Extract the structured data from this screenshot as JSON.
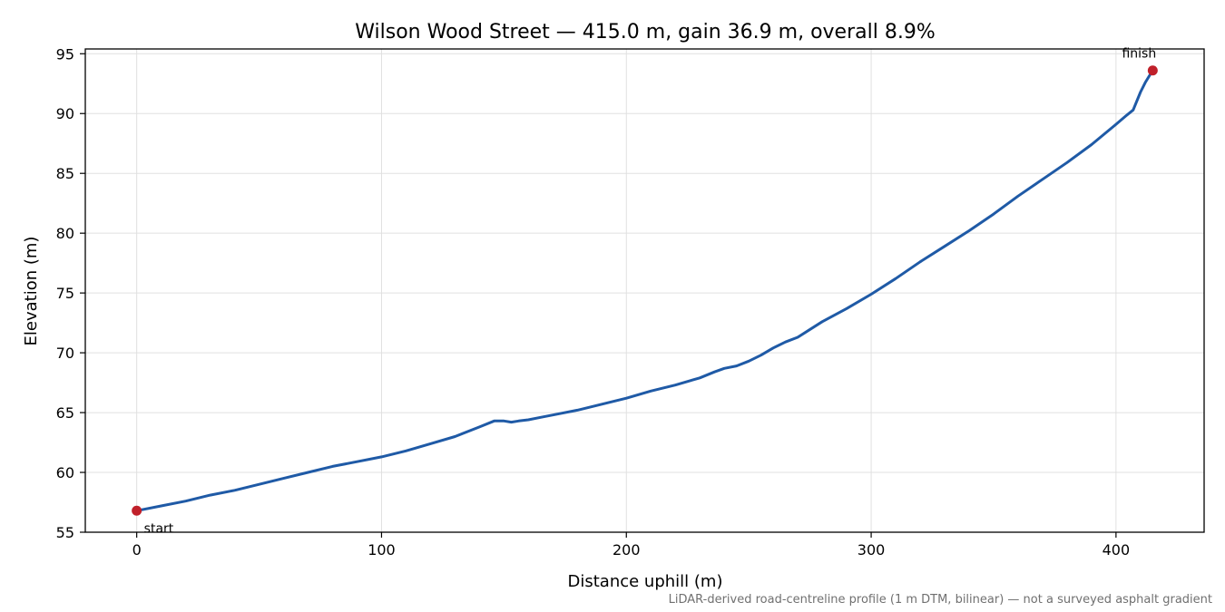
{
  "chart_data": {
    "type": "line",
    "title": "Wilson Wood Street — 415.0 m, gain 36.9 m, overall 8.9%",
    "xlabel": "Distance uphill (m)",
    "ylabel": "Elevation (m)",
    "xlim": [
      -21,
      436
    ],
    "ylim": [
      55,
      95.4
    ],
    "xticks": [
      0,
      100,
      200,
      300,
      400
    ],
    "yticks": [
      55,
      60,
      65,
      70,
      75,
      80,
      85,
      90,
      95
    ],
    "grid": true,
    "footnote": "LiDAR-derived road-centreline profile (1 m DTM, bilinear) — not a surveyed asphalt gradient",
    "colors": {
      "line": "#1f5aa6",
      "markers": "#c0202a",
      "grid": "#e0e0e0",
      "footnote": "#707070"
    },
    "series": [
      {
        "x": [
          0,
          10,
          20,
          30,
          40,
          50,
          60,
          70,
          80,
          90,
          100,
          110,
          120,
          130,
          140,
          146,
          150,
          153,
          156,
          160,
          165,
          170,
          180,
          190,
          200,
          210,
          220,
          230,
          236,
          240,
          245,
          250,
          255,
          260,
          265,
          270,
          280,
          290,
          300,
          310,
          320,
          330,
          340,
          350,
          360,
          370,
          380,
          390,
          400,
          404,
          407,
          410,
          412,
          415
        ],
        "y": [
          56.8,
          57.2,
          57.6,
          58.1,
          58.5,
          59.0,
          59.5,
          60.0,
          60.5,
          60.9,
          61.3,
          61.8,
          62.4,
          63.0,
          63.8,
          64.3,
          64.3,
          64.2,
          64.3,
          64.4,
          64.6,
          64.8,
          65.2,
          65.7,
          66.2,
          66.8,
          67.3,
          67.9,
          68.4,
          68.7,
          68.9,
          69.3,
          69.8,
          70.4,
          70.9,
          71.3,
          72.6,
          73.7,
          74.9,
          76.2,
          77.6,
          78.9,
          80.2,
          81.6,
          83.1,
          84.5,
          85.9,
          87.4,
          89.1,
          89.8,
          90.3,
          91.8,
          92.6,
          93.6
        ]
      }
    ],
    "annotations": [
      {
        "label": "start",
        "x": 0,
        "y": 56.8
      },
      {
        "label": "finish",
        "x": 415,
        "y": 93.6
      }
    ]
  }
}
